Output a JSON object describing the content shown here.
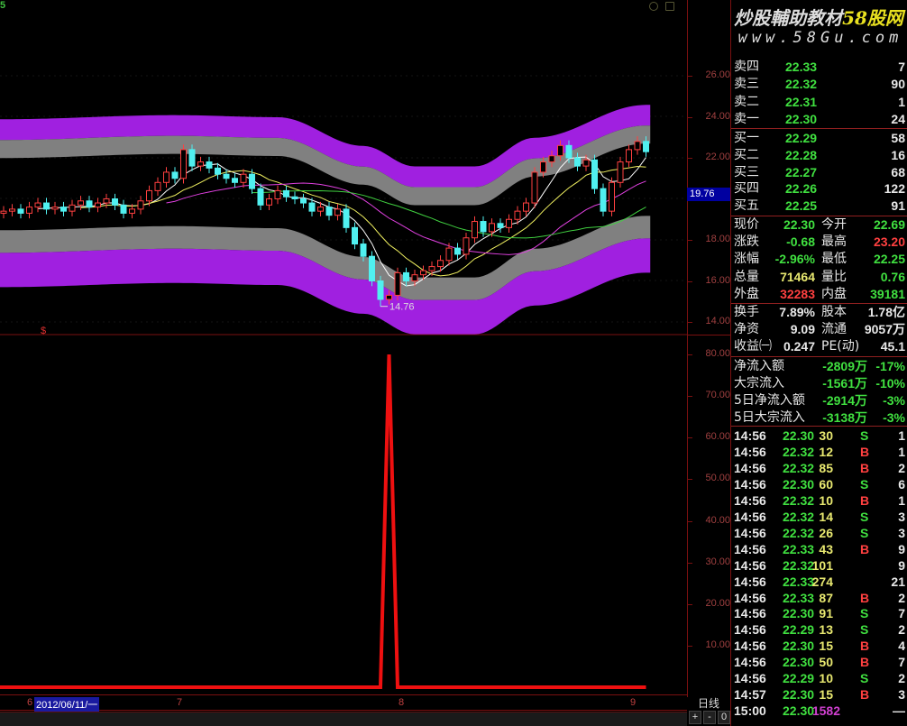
{
  "header": {
    "period_num": "5"
  },
  "watermark": {
    "brand": "炒股輔助教材",
    "brand_accent": "58股网",
    "url": "www.58Gu.com"
  },
  "price_axis": {
    "ticks": [
      "26.00",
      "24.00",
      "22.00",
      "18.00",
      "16.00",
      "14.00"
    ],
    "tick_values": [
      26,
      24,
      22,
      18,
      16,
      14
    ],
    "current": "19.76"
  },
  "indicator_axis": {
    "ticks": [
      "80.00",
      "70.00",
      "60.00",
      "50.00",
      "40.00",
      "30.00",
      "20.00",
      "10.00"
    ],
    "tick_values": [
      80,
      70,
      60,
      50,
      40,
      30,
      20,
      10
    ]
  },
  "x_axis": {
    "labels": [
      "6",
      "7",
      "8",
      "9"
    ],
    "cursor_date": "2012/06/11/一"
  },
  "period_label": "日线",
  "zoom_buttons": [
    "+",
    "-",
    "0"
  ],
  "markers": {
    "low_label": "14.76",
    "signal": "$"
  },
  "order_book": [
    {
      "label": "卖四",
      "price": "22.33",
      "vol": "7"
    },
    {
      "label": "卖三",
      "price": "22.32",
      "vol": "90"
    },
    {
      "label": "卖二",
      "price": "22.31",
      "vol": "1"
    },
    {
      "label": "卖一",
      "price": "22.30",
      "vol": "24"
    },
    {
      "label": "买一",
      "price": "22.29",
      "vol": "58"
    },
    {
      "label": "买二",
      "price": "22.28",
      "vol": "16"
    },
    {
      "label": "买三",
      "price": "22.27",
      "vol": "68"
    },
    {
      "label": "买四",
      "price": "22.26",
      "vol": "122"
    },
    {
      "label": "买五",
      "price": "22.25",
      "vol": "91"
    }
  ],
  "quote": [
    {
      "l1": "现价",
      "v1": "22.30",
      "c1": "g",
      "l2": "今开",
      "v2": "22.69",
      "c2": "g"
    },
    {
      "l1": "涨跌",
      "v1": "-0.68",
      "c1": "g",
      "l2": "最高",
      "v2": "23.20",
      "c2": "r"
    },
    {
      "l1": "涨幅",
      "v1": "-2.96%",
      "c1": "g",
      "l2": "最低",
      "v2": "22.25",
      "c2": "g"
    },
    {
      "l1": "总量",
      "v1": "71464",
      "c1": "y",
      "l2": "量比",
      "v2": "0.76",
      "c2": "g"
    },
    {
      "l1": "外盘",
      "v1": "32283",
      "c1": "r",
      "l2": "内盘",
      "v2": "39181",
      "c2": "g"
    },
    {
      "l1": "换手",
      "v1": "7.89%",
      "c1": "w",
      "l2": "股本",
      "v2": "1.78亿",
      "c2": "w"
    },
    {
      "l1": "净资",
      "v1": "9.09",
      "c1": "w",
      "l2": "流通",
      "v2": "9057万",
      "c2": "w"
    },
    {
      "l1": "收益㈠",
      "v1": "0.247",
      "c1": "w",
      "l2": "PE(动)",
      "v2": "45.1",
      "c2": "w"
    }
  ],
  "flows": [
    {
      "label": "净流入额",
      "amount": "-2809万",
      "pct": "-17%"
    },
    {
      "label": "大宗流入",
      "amount": "-1561万",
      "pct": "-10%"
    },
    {
      "label": "5日净流入额",
      "amount": "-2914万",
      "pct": "-3%"
    },
    {
      "label": "5日大宗流入",
      "amount": "-3138万",
      "pct": "-3%"
    }
  ],
  "trades": [
    {
      "time": "14:56",
      "price": "22.30",
      "vol": "30",
      "side": "S",
      "n": "1"
    },
    {
      "time": "14:56",
      "price": "22.32",
      "vol": "12",
      "side": "B",
      "n": "1"
    },
    {
      "time": "14:56",
      "price": "22.32",
      "vol": "85",
      "side": "B",
      "n": "2"
    },
    {
      "time": "14:56",
      "price": "22.30",
      "vol": "60",
      "side": "S",
      "n": "6"
    },
    {
      "time": "14:56",
      "price": "22.32",
      "vol": "10",
      "side": "B",
      "n": "1"
    },
    {
      "time": "14:56",
      "price": "22.32",
      "vol": "14",
      "side": "S",
      "n": "3"
    },
    {
      "time": "14:56",
      "price": "22.32",
      "vol": "26",
      "side": "S",
      "n": "3"
    },
    {
      "time": "14:56",
      "price": "22.33",
      "vol": "43",
      "side": "B",
      "n": "9"
    },
    {
      "time": "14:56",
      "price": "22.32",
      "vol": "101",
      "side": "",
      "n": "9"
    },
    {
      "time": "14:56",
      "price": "22.33",
      "vol": "274",
      "side": "",
      "n": "21"
    },
    {
      "time": "14:56",
      "price": "22.33",
      "vol": "87",
      "side": "B",
      "n": "2"
    },
    {
      "time": "14:56",
      "price": "22.30",
      "vol": "91",
      "side": "S",
      "n": "7"
    },
    {
      "time": "14:56",
      "price": "22.29",
      "vol": "13",
      "side": "S",
      "n": "2"
    },
    {
      "time": "14:56",
      "price": "22.30",
      "vol": "15",
      "side": "B",
      "n": "4"
    },
    {
      "time": "14:56",
      "price": "22.30",
      "vol": "50",
      "side": "B",
      "n": "7"
    },
    {
      "time": "14:56",
      "price": "22.29",
      "vol": "10",
      "side": "S",
      "n": "2"
    },
    {
      "time": "14:57",
      "price": "22.30",
      "vol": "15",
      "side": "B",
      "n": "3"
    },
    {
      "time": "15:00",
      "price": "22.30",
      "vol": "1582",
      "side": "",
      "n": "—"
    }
  ],
  "colors": {
    "up": "#ff4040",
    "down": "#50f0f0",
    "band_outer": "#a020e0",
    "band_inner": "#808080",
    "indicator": "#ee1010"
  },
  "chart_data": {
    "type": "candlestick",
    "price_range": [
      14,
      26
    ],
    "closes": [
      19.4,
      19.5,
      19.3,
      19.6,
      19.8,
      19.5,
      19.6,
      19.4,
      19.7,
      19.9,
      19.6,
      19.8,
      20.0,
      19.7,
      19.3,
      19.5,
      19.9,
      20.4,
      20.8,
      21.3,
      21.0,
      22.4,
      21.6,
      21.8,
      21.5,
      21.2,
      21.0,
      20.8,
      21.2,
      20.5,
      19.7,
      20.0,
      20.4,
      20.1,
      20.0,
      19.8,
      19.4,
      19.6,
      19.2,
      19.5,
      18.6,
      17.8,
      17.2,
      16.0,
      15.1,
      15.3,
      16.4,
      16.0,
      16.3,
      16.5,
      16.7,
      17.0,
      17.6,
      17.3,
      18.1,
      18.9,
      18.4,
      18.8,
      18.6,
      19.0,
      19.4,
      19.8,
      21.3,
      21.8,
      22.1,
      22.6,
      22.0,
      21.6,
      21.9,
      20.5,
      19.4,
      20.8,
      21.8,
      22.4,
      22.8,
      22.3
    ],
    "moving_averages": [
      5,
      10,
      20,
      30
    ],
    "band_center": [
      [
        0,
        20.1
      ],
      [
        20,
        20.3
      ],
      [
        32,
        20.2
      ],
      [
        42,
        18.8
      ],
      [
        48,
        17.8
      ],
      [
        55,
        17.8
      ],
      [
        62,
        19.2
      ],
      [
        75,
        20.8
      ]
    ],
    "indicator": {
      "range": [
        0,
        85
      ],
      "values_nonzero": {
        "45": 80
      }
    }
  }
}
